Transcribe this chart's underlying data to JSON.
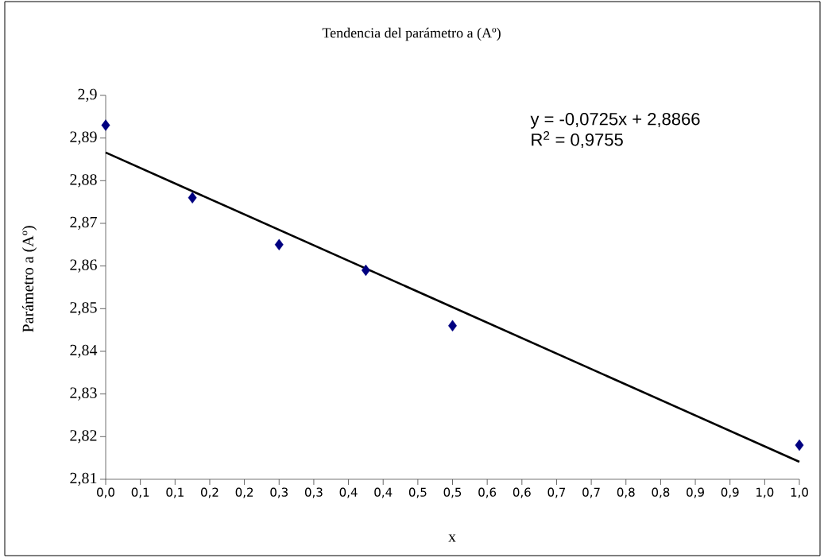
{
  "chart_data": {
    "type": "scatter",
    "title": "Tendencia del parámetro a (Aº)",
    "xlabel": "x",
    "ylabel": "Parámetro a (Aº)",
    "series": [
      {
        "x": [
          0,
          0.125,
          0.25,
          0.375,
          0.5,
          1
        ],
        "values": [
          2.893,
          2.876,
          2.865,
          2.859,
          2.846,
          2.818
        ],
        "color": "#000080",
        "marker": "diamond"
      },
      {
        "type": "line",
        "x": [
          0,
          1
        ],
        "values": [
          2.8866,
          2.8141
        ],
        "color": "#000000",
        "marker": "none"
      }
    ],
    "annotations": [
      "y = -0,0725x + 2,8866",
      "R$^{2}$ = 0,9755"
    ],
    "grid": false,
    "xlim": [
      0,
      1
    ],
    "ylim": [
      2.81,
      2.9
    ],
    "xticks": [
      {
        "value": 0,
        "label": "0,0"
      },
      {
        "value": 0.05,
        "label": "0,1"
      },
      {
        "value": 0.1,
        "label": "0,1"
      },
      {
        "value": 0.15,
        "label": "0,2"
      },
      {
        "value": 0.2,
        "label": "0,2"
      },
      {
        "value": 0.25,
        "label": "0,3"
      },
      {
        "value": 0.3,
        "label": "0,3"
      },
      {
        "value": 0.35,
        "label": "0,4"
      },
      {
        "value": 0.4,
        "label": "0,4"
      },
      {
        "value": 0.45,
        "label": "0,5"
      },
      {
        "value": 0.5,
        "label": "0,5"
      },
      {
        "value": 0.55,
        "label": "0,6"
      },
      {
        "value": 0.6,
        "label": "0,6"
      },
      {
        "value": 0.65,
        "label": "0,7"
      },
      {
        "value": 0.7,
        "label": "0,7"
      },
      {
        "value": 0.75,
        "label": "0,8"
      },
      {
        "value": 0.8,
        "label": "0,8"
      },
      {
        "value": 0.85,
        "label": "0,9"
      },
      {
        "value": 0.9,
        "label": "0,9"
      },
      {
        "value": 0.95,
        "label": "1,0"
      },
      {
        "value": 1,
        "label": "1,0"
      }
    ],
    "yticks": [
      {
        "value": 2.81,
        "label": "2,81"
      },
      {
        "value": 2.82,
        "label": "2,82"
      },
      {
        "value": 2.83,
        "label": "2,83"
      },
      {
        "value": 2.84,
        "label": "2,84"
      },
      {
        "value": 2.85,
        "label": "2,85"
      },
      {
        "value": 2.86,
        "label": "2,86"
      },
      {
        "value": 2.87,
        "label": "2,87"
      },
      {
        "value": 2.88,
        "label": "2,88"
      },
      {
        "value": 2.89,
        "label": "2,89"
      },
      {
        "value": 2.9,
        "label": "2,9"
      }
    ]
  }
}
